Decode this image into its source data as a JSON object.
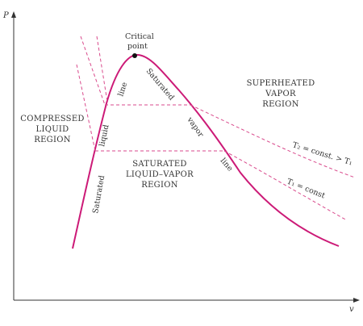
{
  "colors": {
    "curve": "#cc1a77",
    "dashed": "#d94a8c",
    "axes": "#333333",
    "text": "#333333",
    "point": "#111111"
  },
  "axes": {
    "y_label": "P",
    "x_label": "v"
  },
  "labels": {
    "critical_point_line1": "Critical",
    "critical_point_line2": "point",
    "compressed_line1": "COMPRESSED",
    "compressed_line2": "LIQUID",
    "compressed_line3": "REGION",
    "superheated_line1": "SUPERHEATED",
    "superheated_line2": "VAPOR",
    "superheated_line3": "REGION",
    "mixture_line1": "SATURATED",
    "mixture_line2": "LIQUID–VAPOR",
    "mixture_line3": "REGION",
    "sat_liquid_1": "Saturated",
    "sat_liquid_2": "liquid",
    "sat_liquid_3": "line",
    "sat_vapor_1": "Saturated",
    "sat_vapor_2": "vapor",
    "sat_vapor_3": "line",
    "isotherm_t2": "T₂ = const. > T₁",
    "isotherm_t1": "T₁ = const"
  }
}
